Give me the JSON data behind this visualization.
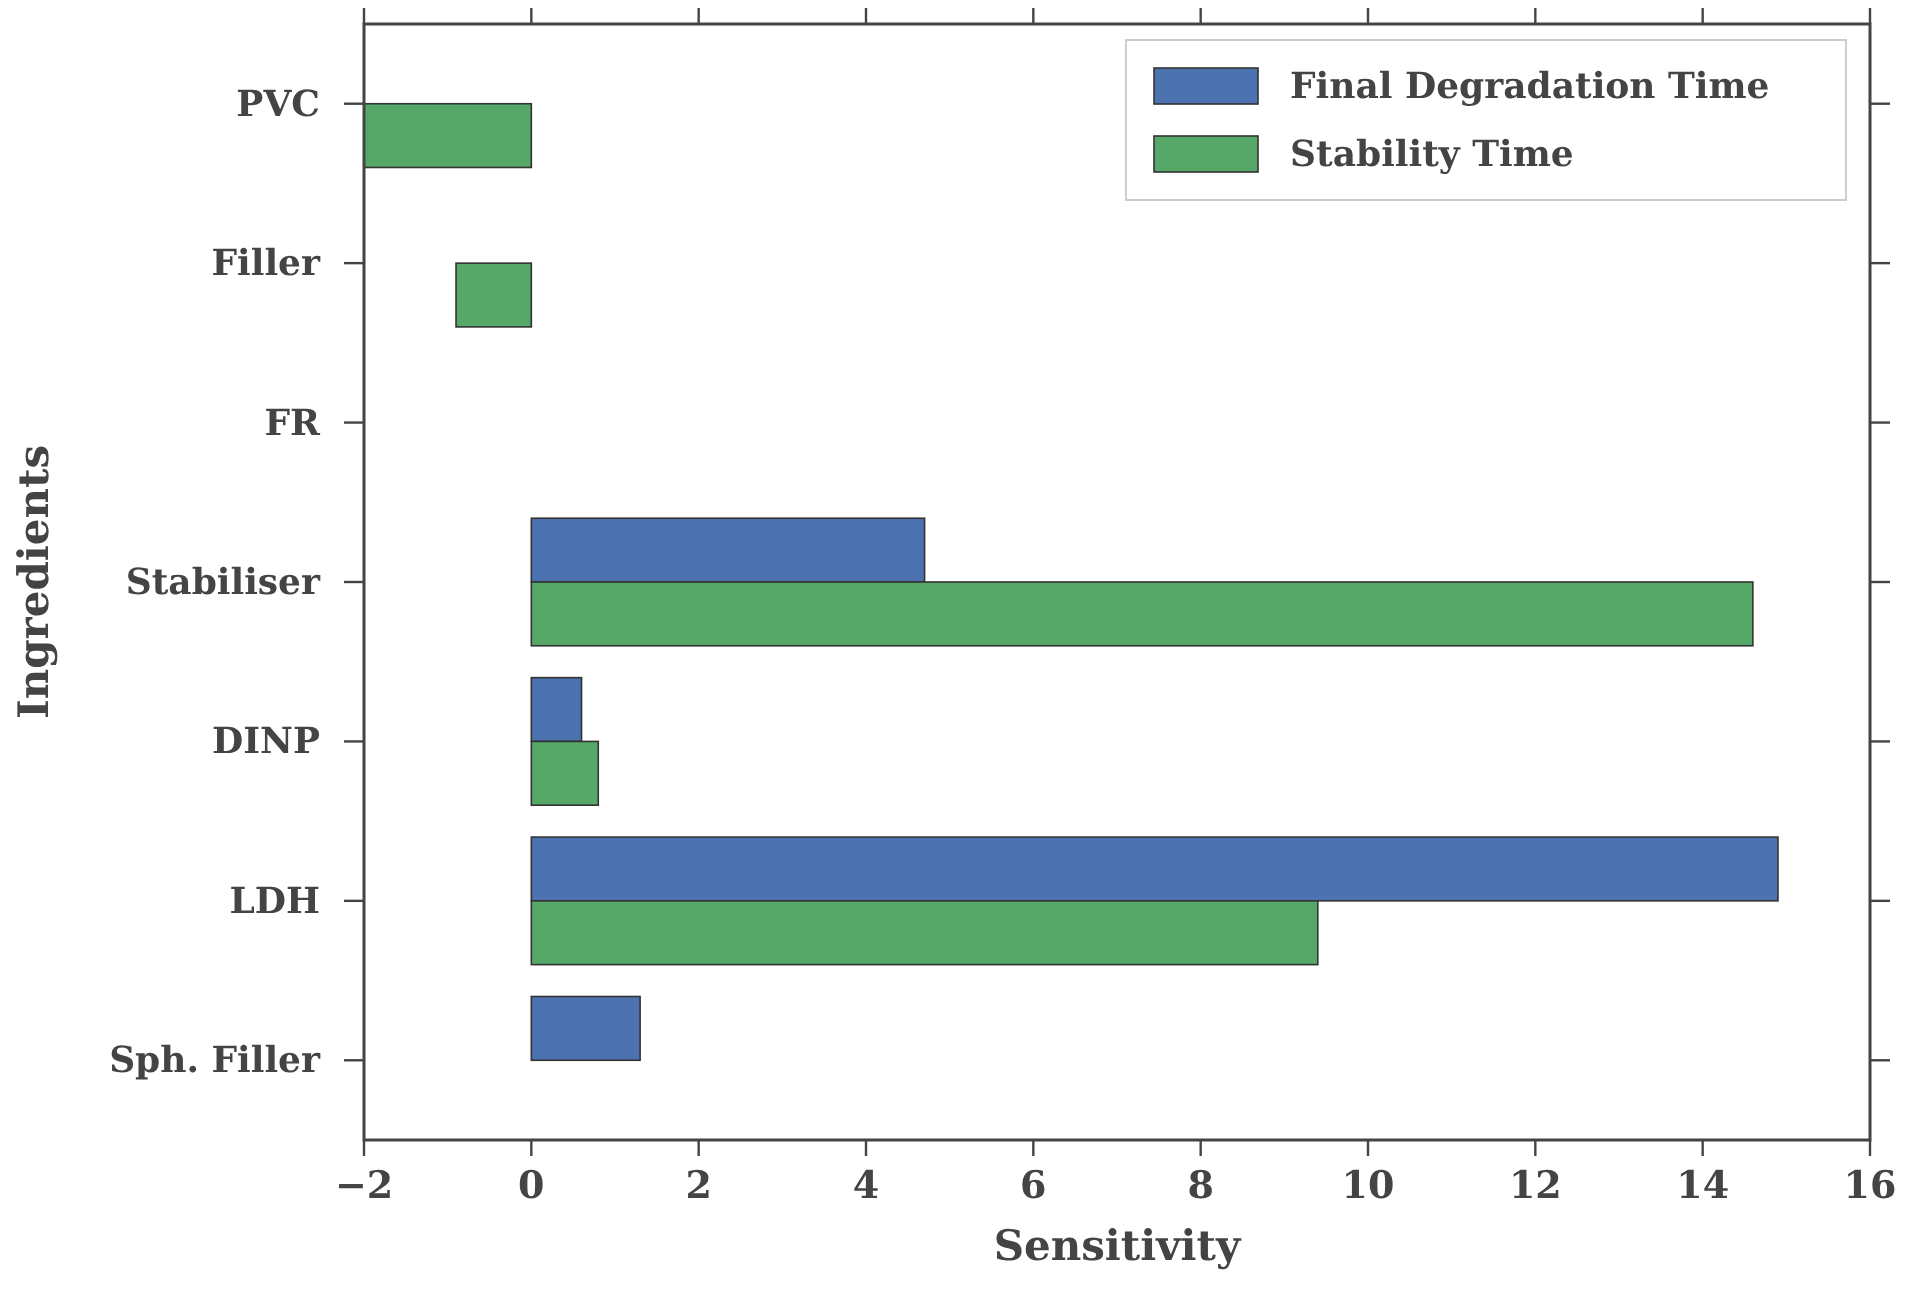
{
  "chart_data": {
    "type": "bar",
    "orientation": "horizontal",
    "xlabel": "Sensitivity",
    "ylabel": "Ingredients",
    "categories": [
      "PVC",
      "Filler",
      "FR",
      "Stabiliser",
      "DINP",
      "LDH",
      "Sph. Filler"
    ],
    "series": [
      {
        "name": "Final Degradation Time",
        "color": "#4c72b0",
        "values": [
          0,
          0,
          0,
          4.7,
          0.6,
          14.9,
          1.3
        ]
      },
      {
        "name": "Stability Time",
        "color": "#55a868",
        "values": [
          -2,
          -0.9,
          0,
          14.6,
          0.8,
          9.4,
          0
        ]
      }
    ],
    "xlim": [
      -2,
      16
    ],
    "xticks": [
      -2,
      0,
      2,
      4,
      6,
      8,
      10,
      12,
      14,
      16
    ],
    "grid": false,
    "legend": "top right"
  }
}
